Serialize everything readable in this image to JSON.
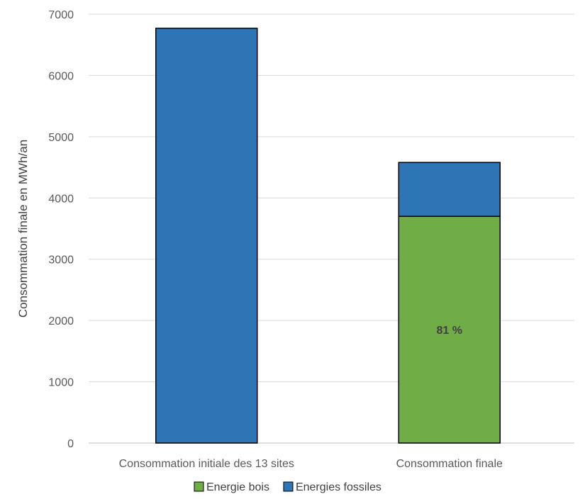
{
  "chart_data": {
    "type": "bar",
    "stacked": true,
    "categories": [
      "Consommation initiale des 13 sites",
      "Consommation finale"
    ],
    "series": [
      {
        "name": "Energie bois",
        "values": [
          0,
          3700
        ],
        "color": "#70AD47"
      },
      {
        "name": "Energies fossiles",
        "values": [
          6770,
          880
        ],
        "color": "#2E75B6"
      }
    ],
    "annotations": [
      {
        "category": "Consommation finale",
        "series": "Energie bois",
        "text": "81 %"
      }
    ],
    "title": "",
    "xlabel": "",
    "ylabel": "Consommation finale en MWh/an",
    "ylim": [
      0,
      7000
    ],
    "yticks": [
      0,
      1000,
      2000,
      3000,
      4000,
      5000,
      6000,
      7000
    ],
    "grid": true,
    "legend_position": "bottom"
  }
}
